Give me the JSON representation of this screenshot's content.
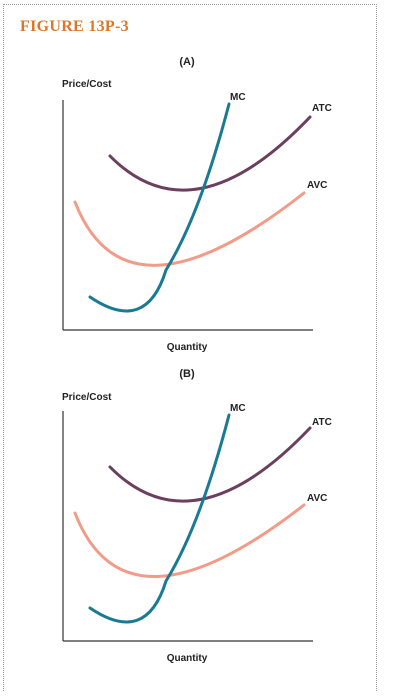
{
  "figure_title": "FIGURE 13P-3",
  "panels": [
    {
      "label": "(A)",
      "ylabel": "Price/Cost",
      "xlabel": "Quantity",
      "curves": {
        "mc": "MC",
        "atc": "ATC",
        "avc": "AVC"
      }
    },
    {
      "label": "(B)",
      "ylabel": "Price/Cost",
      "xlabel": "Quantity",
      "curves": {
        "mc": "MC",
        "atc": "ATC",
        "avc": "AVC"
      }
    }
  ],
  "colors": {
    "title": "#d9772a",
    "mc": "#1b7a93",
    "atc": "#6b3f5e",
    "avc": "#f29b88",
    "axis": "#333333"
  }
}
